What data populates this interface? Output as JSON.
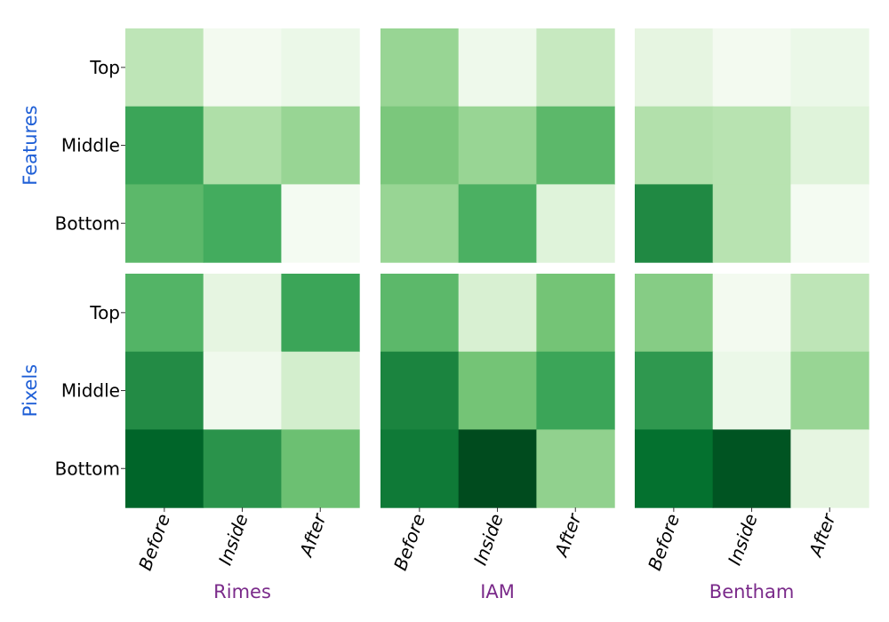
{
  "chart_data": {
    "type": "heatmap",
    "color_scale": "Greens",
    "row_groups": [
      "Features",
      "Pixels"
    ],
    "column_groups": [
      "Rimes",
      "IAM",
      "Bentham"
    ],
    "rows": [
      "Top",
      "Middle",
      "Bottom"
    ],
    "columns": [
      "Before",
      "Inside",
      "After"
    ],
    "value_range": [
      0,
      1
    ],
    "values": {
      "Features": {
        "Rimes": [
          [
            0.28,
            0.03,
            0.08
          ],
          [
            0.65,
            0.33,
            0.4
          ],
          [
            0.56,
            0.62,
            0.02
          ]
        ],
        "IAM": [
          [
            0.4,
            0.06,
            0.25
          ],
          [
            0.48,
            0.4,
            0.56
          ],
          [
            0.4,
            0.6,
            0.15
          ]
        ],
        "Bentham": [
          [
            0.12,
            0.03,
            0.08
          ],
          [
            0.32,
            0.3,
            0.15
          ],
          [
            0.76,
            0.3,
            0.02
          ]
        ]
      },
      "Pixels": {
        "Rimes": [
          [
            0.58,
            0.12,
            0.65
          ],
          [
            0.75,
            0.05,
            0.2
          ],
          [
            0.9,
            0.72,
            0.52
          ]
        ],
        "IAM": [
          [
            0.56,
            0.18,
            0.5
          ],
          [
            0.78,
            0.5,
            0.65
          ],
          [
            0.82,
            0.98,
            0.42
          ]
        ],
        "Bentham": [
          [
            0.45,
            0.03,
            0.28
          ],
          [
            0.7,
            0.08,
            0.4
          ],
          [
            0.86,
            0.95,
            0.12
          ]
        ]
      }
    }
  },
  "colors": {
    "row_group_label": "#1f5fd6",
    "dataset_label": "#7a2a8a",
    "tick_label": "#000000"
  }
}
